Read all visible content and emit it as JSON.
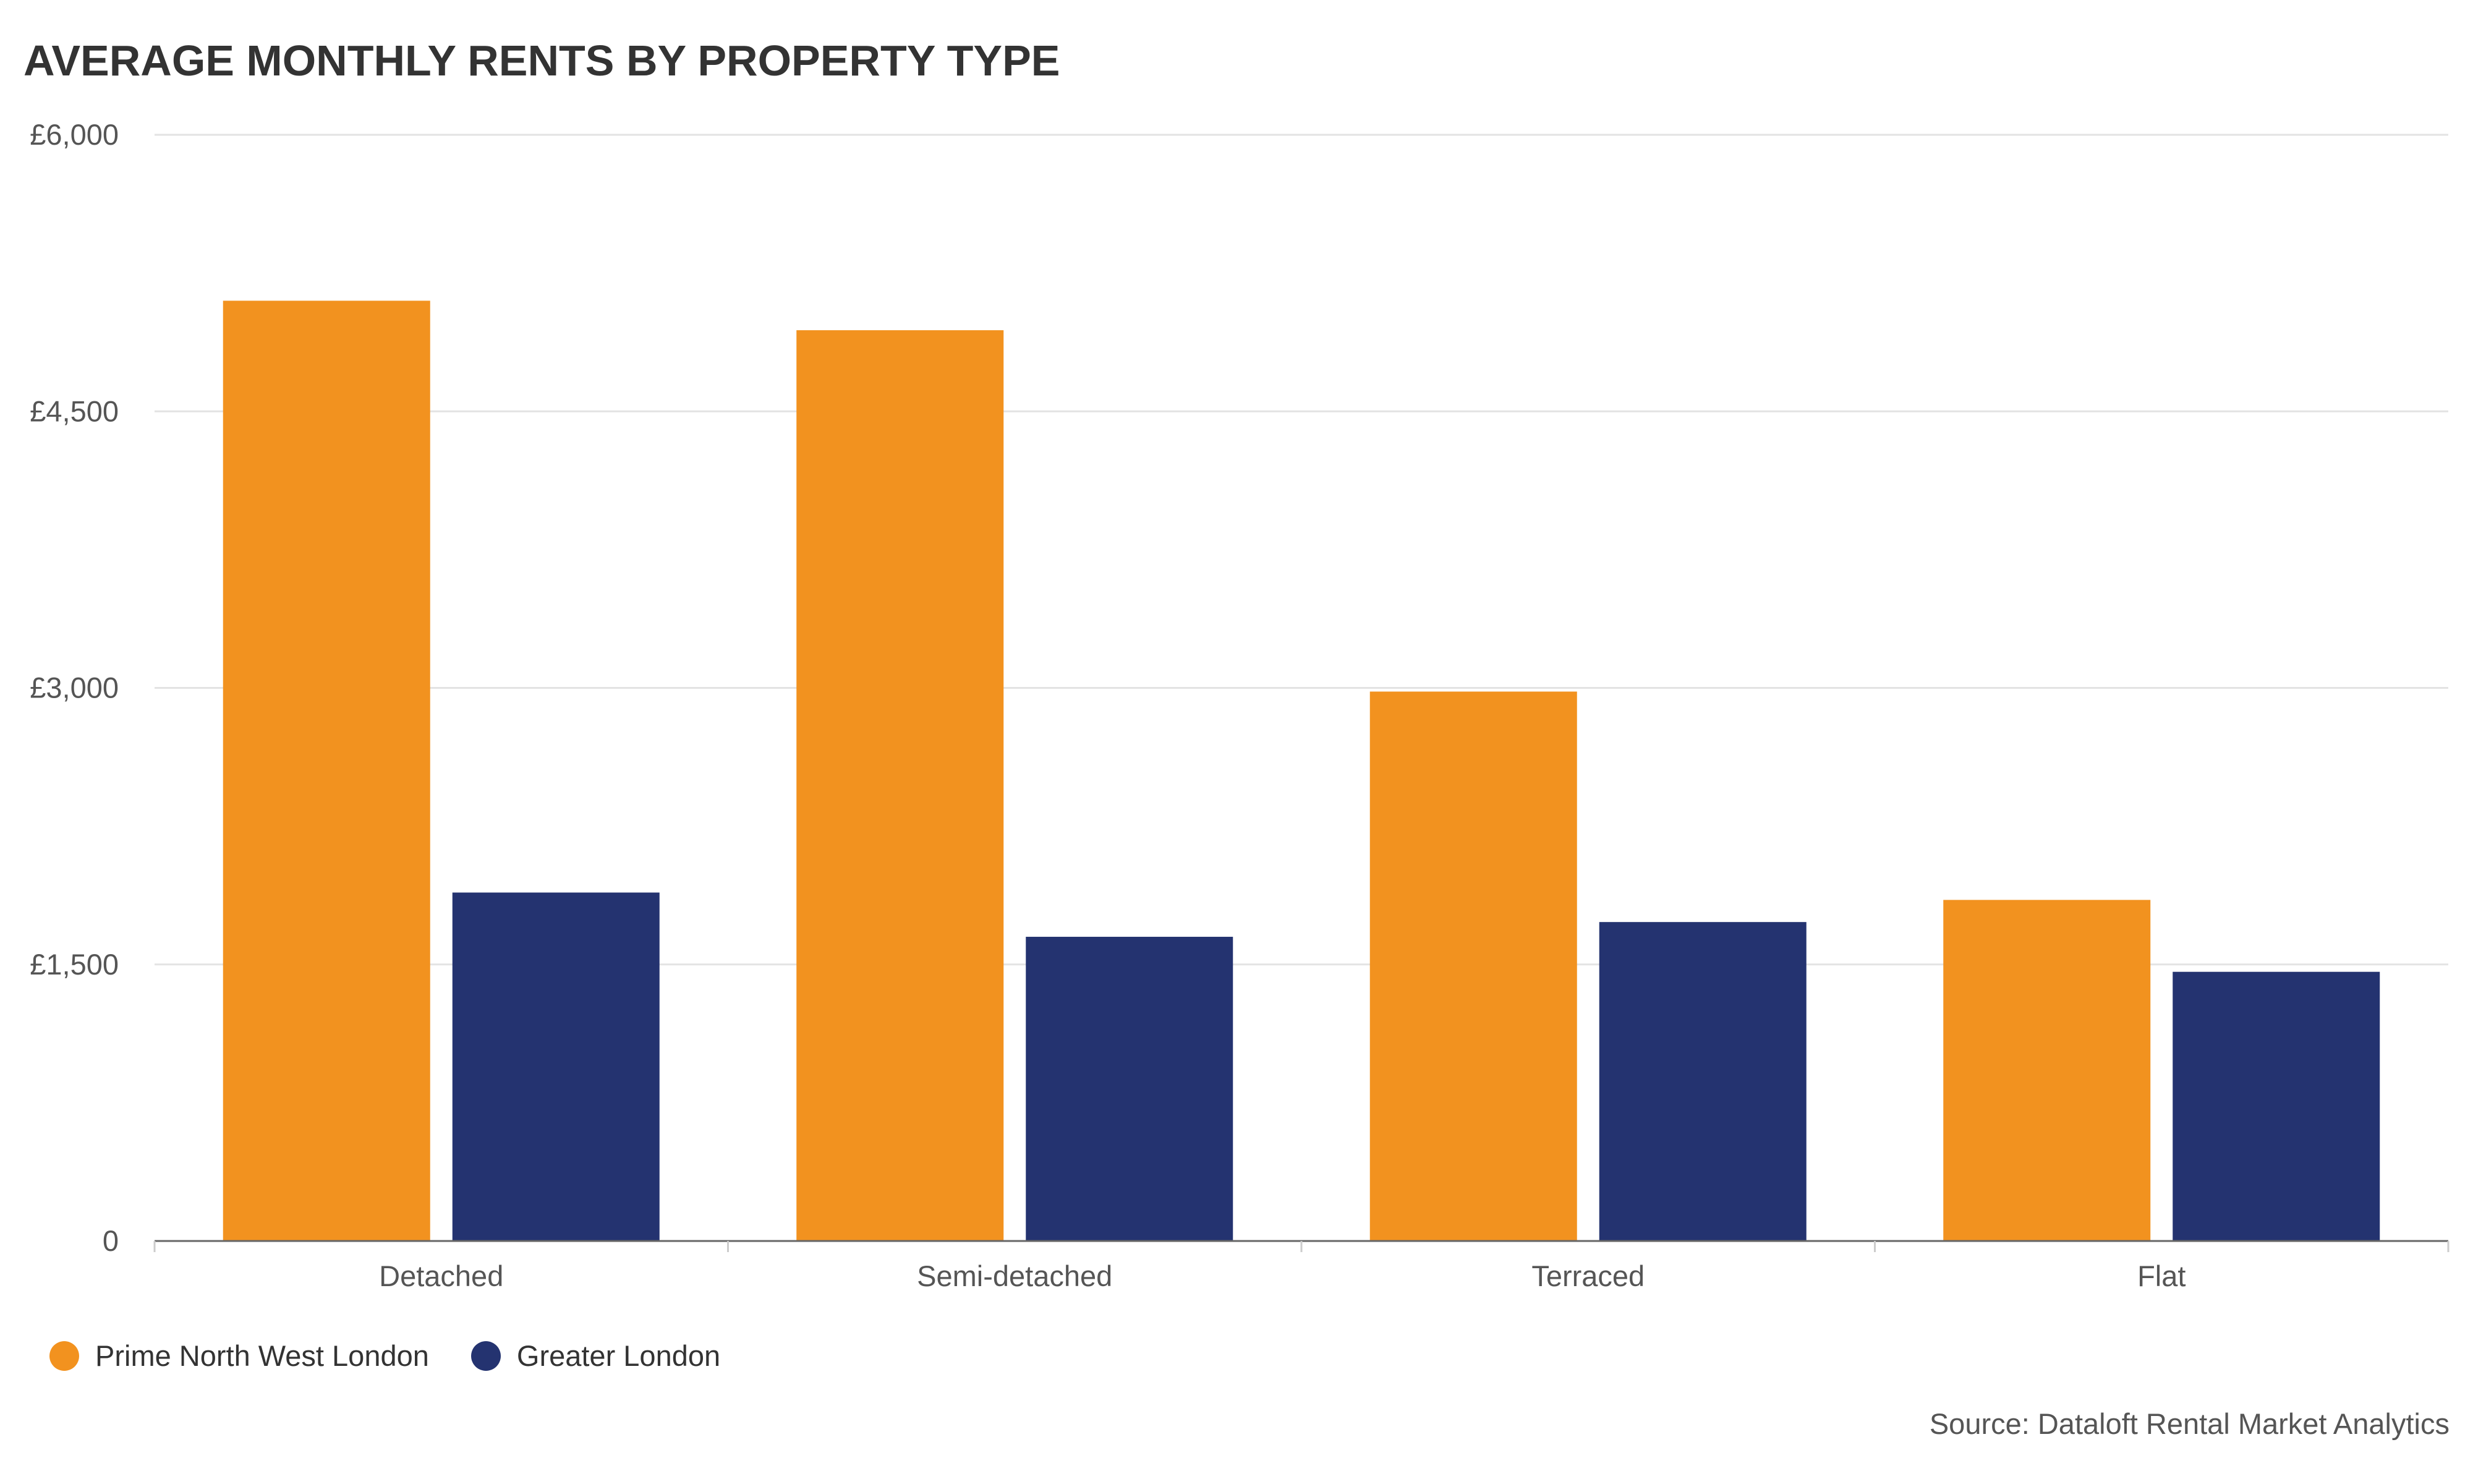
{
  "title": "AVERAGE MONTHLY RENTS BY PROPERTY TYPE",
  "source": "Source: Dataloft Rental Market Analytics",
  "chart_data": {
    "type": "bar",
    "title": "AVERAGE MONTHLY RENTS BY PROPERTY TYPE",
    "xlabel": "",
    "ylabel": "",
    "categories": [
      "Detached",
      "Semi-detached",
      "Terraced",
      "Flat"
    ],
    "series": [
      {
        "name": "Prime North West London",
        "color": "#f2921f",
        "values": [
          5100,
          4940,
          2980,
          1850
        ]
      },
      {
        "name": "Greater London",
        "color": "#243370",
        "values": [
          1890,
          1650,
          1730,
          1460
        ]
      }
    ],
    "ylim": [
      0,
      6000
    ],
    "yticks": [
      0,
      1500,
      3000,
      4500,
      6000
    ],
    "ytick_labels": [
      "0",
      "£1,500",
      "£3,000",
      "£4,500",
      "£6,000"
    ],
    "grid": true,
    "legend_position": "bottom-left"
  },
  "legend": {
    "items": [
      {
        "label": "Prime North West London",
        "color": "#f2921f"
      },
      {
        "label": "Greater London",
        "color": "#243370"
      }
    ]
  }
}
